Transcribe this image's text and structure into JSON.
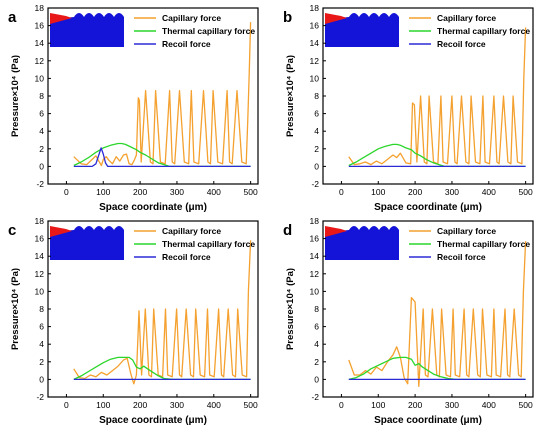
{
  "chart_data": [
    {
      "type": "line",
      "panel_label": "a",
      "xlabel": "Space coordinate (μm)",
      "ylabel": "Pressure×10⁴ (Pa)",
      "xlim": [
        -50,
        520
      ],
      "ylim": [
        -2,
        18
      ],
      "xticks": [
        0,
        100,
        200,
        300,
        400,
        500
      ],
      "yticks": [
        -2,
        0,
        2,
        4,
        6,
        8,
        10,
        12,
        14,
        16,
        18
      ],
      "legend_position": "top-right",
      "series": [
        {
          "name": "Capillary force",
          "color": "#F4A12F",
          "x": [
            20,
            40,
            55,
            70,
            80,
            88,
            95,
            100,
            108,
            115,
            125,
            135,
            145,
            155,
            163,
            170,
            178,
            185,
            190,
            195,
            198,
            203,
            215,
            228,
            235,
            242,
            255,
            268,
            280,
            287,
            294,
            307,
            320,
            332,
            339,
            346,
            359,
            372,
            384,
            391,
            398,
            411,
            424,
            436,
            443,
            450,
            463,
            476,
            488,
            492,
            496,
            500
          ],
          "y": [
            1.1,
            0.3,
            0.2,
            0.8,
            1.2,
            0.6,
            0.1,
            0.8,
            1.1,
            0.7,
            0.3,
            1.1,
            0.6,
            1.3,
            1.4,
            0.3,
            0.2,
            0.8,
            1.3,
            7.8,
            7.5,
            0.5,
            8.6,
            0.5,
            0.3,
            8.6,
            0.5,
            0.3,
            8.6,
            0.5,
            0.3,
            8.6,
            0.5,
            0.3,
            8.6,
            0.5,
            0.3,
            8.6,
            0.5,
            0.3,
            8.6,
            0.5,
            0.3,
            8.6,
            0.5,
            0.3,
            8.6,
            0.5,
            0.3,
            5.0,
            10.5,
            16.4
          ]
        },
        {
          "name": "Thermal capillary force",
          "color": "#2BD62B",
          "x": [
            20,
            40,
            60,
            80,
            100,
            120,
            140,
            150,
            160,
            175,
            190,
            200,
            215,
            230,
            250,
            280,
            300,
            500
          ],
          "y": [
            0.1,
            0.5,
            1.0,
            1.6,
            2.1,
            2.4,
            2.6,
            2.6,
            2.5,
            2.2,
            1.9,
            1.6,
            1.3,
            0.9,
            0.4,
            0.0,
            0.0,
            0.0
          ]
        },
        {
          "name": "Recoil force",
          "color": "#2B2BD6",
          "x": [
            20,
            70,
            80,
            88,
            94,
            100,
            106,
            112,
            500
          ],
          "y": [
            0.0,
            0.0,
            0.3,
            1.3,
            2.1,
            1.4,
            0.4,
            0.0,
            0.0
          ]
        }
      ]
    },
    {
      "type": "line",
      "panel_label": "b",
      "xlabel": "Space coordinate (μm)",
      "ylabel": "Pressure×10⁴ (Pa)",
      "xlim": [
        -50,
        520
      ],
      "ylim": [
        -2,
        18
      ],
      "xticks": [
        0,
        100,
        200,
        300,
        400,
        500
      ],
      "yticks": [
        -2,
        0,
        2,
        4,
        6,
        8,
        10,
        12,
        14,
        16,
        18
      ],
      "legend_position": "top-right",
      "series": [
        {
          "name": "Capillary force",
          "color": "#F4A12F",
          "x": [
            20,
            35,
            50,
            65,
            80,
            95,
            110,
            125,
            140,
            150,
            160,
            175,
            188,
            193,
            198,
            205,
            215,
            225,
            232,
            238,
            250,
            262,
            270,
            276,
            288,
            300,
            308,
            314,
            326,
            338,
            346,
            352,
            364,
            376,
            384,
            390,
            402,
            414,
            422,
            428,
            440,
            452,
            460,
            466,
            478,
            490,
            495,
            500
          ],
          "y": [
            1.1,
            0.2,
            0.3,
            0.5,
            0.2,
            0.6,
            0.3,
            0.8,
            1.3,
            1.0,
            1.5,
            0.4,
            0.3,
            7.2,
            7.0,
            0.5,
            8.0,
            0.5,
            0.3,
            8.0,
            0.5,
            0.3,
            8.0,
            0.5,
            0.3,
            8.0,
            0.5,
            0.3,
            8.0,
            0.5,
            0.3,
            8.0,
            0.5,
            0.3,
            8.0,
            0.5,
            0.3,
            8.0,
            0.5,
            0.3,
            8.0,
            0.5,
            0.3,
            8.0,
            0.5,
            0.3,
            10.0,
            15.8
          ]
        },
        {
          "name": "Thermal capillary force",
          "color": "#2BD62B",
          "x": [
            20,
            40,
            60,
            80,
            100,
            120,
            140,
            150,
            160,
            175,
            190,
            200,
            215,
            230,
            250,
            280,
            300,
            500
          ],
          "y": [
            0.1,
            0.5,
            1.0,
            1.5,
            2.0,
            2.3,
            2.5,
            2.5,
            2.4,
            2.1,
            1.9,
            1.5,
            1.2,
            0.8,
            0.4,
            0.0,
            0.0,
            0.0
          ]
        },
        {
          "name": "Recoil force",
          "color": "#2B2BD6",
          "x": [
            20,
            500
          ],
          "y": [
            0.0,
            0.0
          ]
        }
      ]
    },
    {
      "type": "line",
      "panel_label": "c",
      "xlabel": "Space coordinate (μm)",
      "ylabel": "Pressure×10⁴ (Pa)",
      "xlim": [
        -50,
        520
      ],
      "ylim": [
        -2,
        18
      ],
      "xticks": [
        0,
        100,
        200,
        300,
        400,
        500
      ],
      "yticks": [
        -2,
        0,
        2,
        4,
        6,
        8,
        10,
        12,
        14,
        16,
        18
      ],
      "legend_position": "top-right",
      "series": [
        {
          "name": "Capillary force",
          "color": "#F4A12F",
          "x": [
            20,
            35,
            50,
            65,
            80,
            95,
            110,
            125,
            140,
            155,
            165,
            175,
            183,
            190,
            197,
            204,
            214,
            224,
            231,
            237,
            249,
            261,
            269,
            275,
            287,
            299,
            307,
            313,
            325,
            337,
            345,
            351,
            363,
            375,
            383,
            389,
            401,
            413,
            421,
            427,
            439,
            451,
            459,
            465,
            477,
            489,
            494,
            500
          ],
          "y": [
            1.2,
            0.2,
            0.1,
            0.5,
            0.3,
            0.8,
            0.5,
            1.0,
            1.5,
            2.2,
            2.4,
            0.6,
            -0.5,
            0.5,
            7.8,
            0.5,
            8.0,
            0.5,
            0.3,
            8.0,
            0.5,
            0.3,
            8.0,
            0.5,
            0.3,
            8.0,
            0.5,
            0.3,
            8.0,
            0.5,
            0.3,
            8.0,
            0.5,
            0.3,
            8.0,
            0.5,
            0.3,
            8.0,
            0.5,
            0.3,
            8.0,
            0.5,
            0.3,
            8.0,
            0.5,
            0.3,
            10.0,
            15.8
          ]
        },
        {
          "name": "Thermal capillary force",
          "color": "#2BD62B",
          "x": [
            20,
            40,
            60,
            80,
            100,
            120,
            140,
            155,
            170,
            180,
            190,
            200,
            210,
            220,
            235,
            250,
            265,
            290,
            500
          ],
          "y": [
            0.0,
            0.4,
            0.9,
            1.4,
            1.9,
            2.3,
            2.5,
            2.5,
            2.5,
            2.2,
            1.4,
            1.2,
            1.5,
            1.2,
            0.8,
            0.4,
            0.1,
            0.0,
            0.0
          ]
        },
        {
          "name": "Recoil force",
          "color": "#2B2BD6",
          "x": [
            20,
            500
          ],
          "y": [
            0.0,
            0.0
          ]
        }
      ]
    },
    {
      "type": "line",
      "panel_label": "d",
      "xlabel": "Space coordinate (μm)",
      "ylabel": "Pressure×10⁴ (Pa)",
      "xlim": [
        -50,
        520
      ],
      "ylim": [
        -2,
        18
      ],
      "xticks": [
        0,
        100,
        200,
        300,
        400,
        500
      ],
      "yticks": [
        -2,
        0,
        2,
        4,
        6,
        8,
        10,
        12,
        14,
        16,
        18
      ],
      "legend_position": "top-right",
      "series": [
        {
          "name": "Capillary force",
          "color": "#F4A12F",
          "x": [
            20,
            35,
            50,
            65,
            80,
            95,
            110,
            125,
            140,
            150,
            160,
            170,
            180,
            190,
            200,
            210,
            222,
            228,
            235,
            247,
            259,
            266,
            272,
            284,
            296,
            303,
            309,
            321,
            333,
            340,
            346,
            358,
            370,
            377,
            383,
            395,
            407,
            414,
            420,
            432,
            444,
            451,
            457,
            469,
            481,
            488,
            494,
            500
          ],
          "y": [
            2.2,
            0.5,
            0.5,
            1.0,
            0.6,
            1.4,
            1.0,
            2.0,
            2.8,
            3.7,
            2.5,
            0.2,
            -0.5,
            9.3,
            8.8,
            -0.8,
            8.0,
            0.5,
            0.3,
            8.0,
            0.5,
            0.3,
            8.0,
            0.5,
            0.3,
            8.0,
            0.5,
            0.3,
            8.0,
            0.5,
            0.3,
            8.0,
            0.5,
            0.3,
            8.0,
            0.5,
            0.3,
            8.0,
            0.5,
            0.3,
            8.0,
            0.5,
            0.3,
            8.0,
            0.5,
            0.3,
            10.0,
            15.7
          ]
        },
        {
          "name": "Thermal capillary force",
          "color": "#2BD62B",
          "x": [
            20,
            40,
            60,
            80,
            100,
            120,
            140,
            160,
            175,
            190,
            200,
            210,
            220,
            235,
            250,
            270,
            290,
            310,
            500
          ],
          "y": [
            0.0,
            0.2,
            0.6,
            1.2,
            1.6,
            2.0,
            2.4,
            2.5,
            2.5,
            2.3,
            1.6,
            1.8,
            1.4,
            1.0,
            0.6,
            0.3,
            0.1,
            0.0,
            0.0
          ]
        },
        {
          "name": "Recoil force",
          "color": "#2B2BD6",
          "x": [
            20,
            500
          ],
          "y": [
            0.0,
            0.0
          ]
        }
      ]
    }
  ]
}
